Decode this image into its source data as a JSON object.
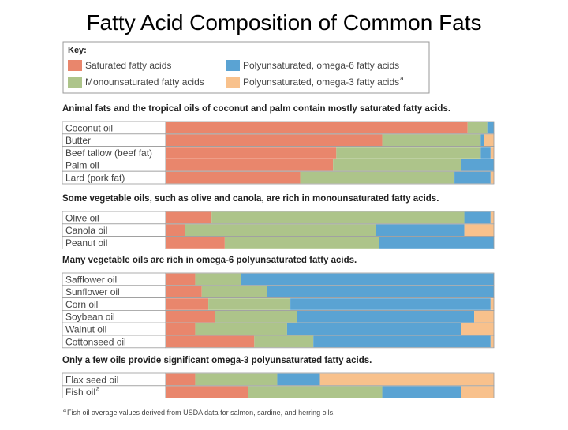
{
  "chart_data": {
    "type": "bar",
    "stacked": true,
    "orientation": "horizontal",
    "units": "percent",
    "title": "Fatty Acid Composition of Common Fats",
    "key": {
      "heading": "Key:",
      "entries": [
        {
          "key": "sat",
          "label": "Saturated fatty acids",
          "color": "#e9866c"
        },
        {
          "key": "mono",
          "label": "Monounsaturated fatty acids",
          "color": "#adc48a"
        },
        {
          "key": "o6",
          "label": "Polyunsaturated, omega-6 fatty acids",
          "color": "#5aa3d3"
        },
        {
          "key": "o3",
          "label": "Polyunsaturated, omega-3 fatty acids",
          "label_sup": "a",
          "color": "#f8c18c"
        }
      ]
    },
    "series_order": [
      "sat",
      "mono",
      "o6",
      "o3"
    ],
    "groups": [
      {
        "heading": "Animal fats and the tropical oils of coconut and palm contain mostly saturated fatty acids.",
        "rows": [
          {
            "name": "Coconut oil",
            "values": [
              92,
              6,
              2,
              0
            ]
          },
          {
            "name": "Butter",
            "values": [
              66,
              30,
              1,
              3
            ]
          },
          {
            "name": "Beef tallow (beef fat)",
            "values": [
              52,
              44,
              3,
              1
            ]
          },
          {
            "name": "Palm oil",
            "values": [
              51,
              39,
              10,
              0
            ]
          },
          {
            "name": "Lard (pork fat)",
            "values": [
              41,
              47,
              11,
              1
            ]
          }
        ]
      },
      {
        "heading": "Some vegetable oils, such as olive and canola, are rich in monounsaturated fatty acids.",
        "rows": [
          {
            "name": "Olive oil",
            "values": [
              14,
              77,
              8,
              1
            ]
          },
          {
            "name": "Canola oil",
            "values": [
              6,
              58,
              27,
              9
            ]
          },
          {
            "name": "Peanut oil",
            "values": [
              18,
              47,
              35,
              0
            ]
          }
        ]
      },
      {
        "heading": "Many vegetable oils are rich in omega-6 polyunsaturated fatty acids.",
        "rows": [
          {
            "name": "Safflower oil",
            "values": [
              9,
              14,
              77,
              0
            ]
          },
          {
            "name": "Sunflower oil",
            "values": [
              11,
              20,
              69,
              0
            ]
          },
          {
            "name": "Corn oil",
            "values": [
              13,
              25,
              61,
              1
            ]
          },
          {
            "name": "Soybean oil",
            "values": [
              15,
              25,
              54,
              6
            ]
          },
          {
            "name": "Walnut oil",
            "values": [
              9,
              28,
              53,
              10
            ]
          },
          {
            "name": "Cottonseed oil",
            "values": [
              27,
              18,
              54,
              1
            ]
          }
        ]
      },
      {
        "heading": "Only a few oils provide significant omega-3 polyunsaturated fatty acids.",
        "rows": [
          {
            "name": "Flax seed oil",
            "values": [
              9,
              25,
              13,
              53
            ]
          },
          {
            "name": "Fish oil",
            "name_sup": "a",
            "values": [
              25,
              41,
              24,
              10
            ]
          }
        ]
      }
    ],
    "footnote": {
      "marker": "a",
      "text": "Fish oil average values derived from USDA data for salmon, sardine, and herring oils."
    },
    "xlim": [
      0,
      100
    ],
    "grid": false,
    "legend_position": "top-left"
  }
}
